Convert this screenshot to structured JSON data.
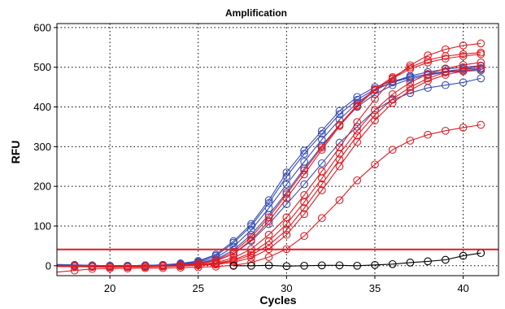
{
  "chart_data": {
    "type": "line",
    "title": "Amplification",
    "xlabel": "Cycles",
    "ylabel": "RFU",
    "xlim": [
      17,
      42
    ],
    "ylim": [
      -25,
      610
    ],
    "xticks": [
      20,
      25,
      30,
      35,
      40
    ],
    "yticks": [
      0,
      100,
      200,
      300,
      400,
      500,
      600
    ],
    "grid": true,
    "threshold": 41,
    "series": [
      {
        "color": "#3a4fb5",
        "values": [
          [
            18,
            2
          ],
          [
            19,
            1
          ],
          [
            20,
            0
          ],
          [
            21,
            0
          ],
          [
            22,
            1
          ],
          [
            23,
            2
          ],
          [
            24,
            6
          ],
          [
            25,
            12
          ],
          [
            26,
            28
          ],
          [
            27,
            62
          ],
          [
            28,
            105
          ],
          [
            29,
            165
          ],
          [
            30,
            235
          ],
          [
            31,
            290
          ],
          [
            32,
            340
          ],
          [
            33,
            390
          ],
          [
            34,
            425
          ],
          [
            35,
            450
          ],
          [
            36,
            465
          ],
          [
            37,
            475
          ],
          [
            38,
            482
          ],
          [
            39,
            487
          ],
          [
            40,
            490
          ],
          [
            41,
            492
          ]
        ]
      },
      {
        "color": "#3a4fb5",
        "values": [
          [
            18,
            2
          ],
          [
            19,
            1
          ],
          [
            20,
            0
          ],
          [
            21,
            0
          ],
          [
            22,
            1
          ],
          [
            23,
            2
          ],
          [
            24,
            5
          ],
          [
            25,
            11
          ],
          [
            26,
            25
          ],
          [
            27,
            58
          ],
          [
            28,
            100
          ],
          [
            29,
            158
          ],
          [
            30,
            225
          ],
          [
            31,
            282
          ],
          [
            32,
            332
          ],
          [
            33,
            382
          ],
          [
            34,
            418
          ],
          [
            35,
            445
          ],
          [
            36,
            462
          ],
          [
            37,
            474
          ],
          [
            38,
            483
          ],
          [
            39,
            490
          ],
          [
            40,
            495
          ],
          [
            41,
            498
          ]
        ]
      },
      {
        "color": "#3a4fb5",
        "values": [
          [
            18,
            1
          ],
          [
            19,
            0
          ],
          [
            20,
            -1
          ],
          [
            21,
            0
          ],
          [
            22,
            1
          ],
          [
            23,
            2
          ],
          [
            24,
            4
          ],
          [
            25,
            9
          ],
          [
            26,
            20
          ],
          [
            27,
            48
          ],
          [
            28,
            90
          ],
          [
            29,
            145
          ],
          [
            30,
            205
          ],
          [
            31,
            262
          ],
          [
            32,
            318
          ],
          [
            33,
            368
          ],
          [
            34,
            410
          ],
          [
            35,
            442
          ],
          [
            36,
            463
          ],
          [
            37,
            478
          ],
          [
            38,
            488
          ],
          [
            39,
            495
          ],
          [
            40,
            500
          ],
          [
            41,
            504
          ]
        ]
      },
      {
        "color": "#3a4fb5",
        "values": [
          [
            18,
            1
          ],
          [
            19,
            0
          ],
          [
            20,
            0
          ],
          [
            21,
            0
          ],
          [
            22,
            1
          ],
          [
            23,
            1
          ],
          [
            24,
            3
          ],
          [
            25,
            7
          ],
          [
            26,
            16
          ],
          [
            27,
            40
          ],
          [
            28,
            78
          ],
          [
            29,
            128
          ],
          [
            30,
            185
          ],
          [
            31,
            245
          ],
          [
            32,
            302
          ],
          [
            33,
            355
          ],
          [
            34,
            400
          ],
          [
            35,
            432
          ],
          [
            36,
            455
          ],
          [
            37,
            470
          ],
          [
            38,
            480
          ],
          [
            39,
            487
          ],
          [
            40,
            492
          ],
          [
            41,
            495
          ]
        ]
      },
      {
        "color": "#3a4fb5",
        "values": [
          [
            18,
            0
          ],
          [
            19,
            0
          ],
          [
            20,
            -1
          ],
          [
            21,
            -1
          ],
          [
            22,
            0
          ],
          [
            23,
            1
          ],
          [
            24,
            2
          ],
          [
            25,
            5
          ],
          [
            26,
            12
          ],
          [
            27,
            30
          ],
          [
            28,
            62
          ],
          [
            29,
            105
          ],
          [
            30,
            155
          ],
          [
            31,
            205
          ],
          [
            32,
            258
          ],
          [
            33,
            310
          ],
          [
            34,
            350
          ],
          [
            35,
            392
          ],
          [
            36,
            418
          ],
          [
            37,
            435
          ],
          [
            38,
            448
          ],
          [
            39,
            455
          ],
          [
            40,
            462
          ],
          [
            41,
            472
          ]
        ]
      },
      {
        "color": "#e01c24",
        "values": [
          [
            18,
            0
          ],
          [
            19,
            -1
          ],
          [
            20,
            -2
          ],
          [
            21,
            -2
          ],
          [
            22,
            -1
          ],
          [
            23,
            0
          ],
          [
            24,
            2
          ],
          [
            25,
            6
          ],
          [
            26,
            14
          ],
          [
            27,
            35
          ],
          [
            28,
            72
          ],
          [
            29,
            122
          ],
          [
            30,
            180
          ],
          [
            31,
            240
          ],
          [
            32,
            298
          ],
          [
            33,
            355
          ],
          [
            34,
            405
          ],
          [
            35,
            445
          ],
          [
            36,
            475
          ],
          [
            37,
            500
          ],
          [
            38,
            518
          ],
          [
            39,
            528
          ],
          [
            40,
            533
          ],
          [
            41,
            537
          ]
        ]
      },
      {
        "color": "#e01c24",
        "values": [
          [
            18,
            0
          ],
          [
            19,
            -1
          ],
          [
            20,
            -2
          ],
          [
            21,
            -2
          ],
          [
            22,
            -1
          ],
          [
            23,
            0
          ],
          [
            24,
            1
          ],
          [
            25,
            5
          ],
          [
            26,
            12
          ],
          [
            27,
            30
          ],
          [
            28,
            65
          ],
          [
            29,
            112
          ],
          [
            30,
            170
          ],
          [
            31,
            230
          ],
          [
            32,
            292
          ],
          [
            33,
            352
          ],
          [
            34,
            402
          ],
          [
            35,
            442
          ],
          [
            36,
            472
          ],
          [
            37,
            496
          ],
          [
            38,
            512
          ],
          [
            39,
            522
          ],
          [
            40,
            528
          ],
          [
            41,
            533
          ]
        ]
      },
      {
        "color": "#e01c24",
        "values": [
          [
            18,
            -1
          ],
          [
            19,
            -2
          ],
          [
            20,
            -3
          ],
          [
            21,
            -3
          ],
          [
            22,
            -2
          ],
          [
            23,
            -1
          ],
          [
            24,
            0
          ],
          [
            25,
            3
          ],
          [
            26,
            8
          ],
          [
            27,
            20
          ],
          [
            28,
            42
          ],
          [
            29,
            78
          ],
          [
            30,
            122
          ],
          [
            31,
            178
          ],
          [
            32,
            238
          ],
          [
            33,
            298
          ],
          [
            34,
            362
          ],
          [
            35,
            420
          ],
          [
            36,
            470
          ],
          [
            37,
            505
          ],
          [
            38,
            530
          ],
          [
            39,
            545
          ],
          [
            40,
            555
          ],
          [
            41,
            560
          ]
        ]
      },
      {
        "color": "#e01c24",
        "values": [
          [
            18,
            -1
          ],
          [
            19,
            -2
          ],
          [
            20,
            -3
          ],
          [
            21,
            -3
          ],
          [
            22,
            -2
          ],
          [
            23,
            -1
          ],
          [
            24,
            0
          ],
          [
            25,
            2
          ],
          [
            26,
            6
          ],
          [
            27,
            15
          ],
          [
            28,
            32
          ],
          [
            29,
            62
          ],
          [
            30,
            105
          ],
          [
            31,
            160
          ],
          [
            32,
            220
          ],
          [
            33,
            282
          ],
          [
            34,
            340
          ],
          [
            35,
            392
          ],
          [
            36,
            432
          ],
          [
            37,
            462
          ],
          [
            38,
            483
          ],
          [
            39,
            497
          ],
          [
            40,
            506
          ],
          [
            41,
            512
          ]
        ]
      },
      {
        "color": "#e01c24",
        "values": [
          [
            18,
            -2
          ],
          [
            19,
            -2
          ],
          [
            20,
            -3
          ],
          [
            21,
            -3
          ],
          [
            22,
            -2
          ],
          [
            23,
            -1
          ],
          [
            24,
            0
          ],
          [
            25,
            2
          ],
          [
            26,
            5
          ],
          [
            27,
            12
          ],
          [
            28,
            27
          ],
          [
            29,
            52
          ],
          [
            30,
            90
          ],
          [
            31,
            145
          ],
          [
            32,
            205
          ],
          [
            33,
            268
          ],
          [
            34,
            328
          ],
          [
            35,
            380
          ],
          [
            36,
            420
          ],
          [
            37,
            450
          ],
          [
            38,
            472
          ],
          [
            39,
            487
          ],
          [
            40,
            496
          ],
          [
            41,
            503
          ]
        ]
      },
      {
        "color": "#e01c24",
        "values": [
          [
            18,
            -2
          ],
          [
            19,
            -3
          ],
          [
            20,
            -4
          ],
          [
            21,
            -3
          ],
          [
            22,
            -3
          ],
          [
            23,
            -2
          ],
          [
            24,
            -1
          ],
          [
            25,
            1
          ],
          [
            26,
            3
          ],
          [
            27,
            9
          ],
          [
            28,
            20
          ],
          [
            29,
            42
          ],
          [
            30,
            78
          ],
          [
            31,
            130
          ],
          [
            32,
            190
          ],
          [
            33,
            250
          ],
          [
            34,
            312
          ],
          [
            35,
            366
          ],
          [
            36,
            410
          ],
          [
            37,
            442
          ],
          [
            38,
            466
          ],
          [
            39,
            481
          ],
          [
            40,
            490
          ],
          [
            41,
            496
          ]
        ]
      },
      {
        "color": "#e01c24",
        "values": [
          [
            18,
            -12
          ],
          [
            19,
            -8
          ],
          [
            20,
            -7
          ],
          [
            21,
            -7
          ],
          [
            22,
            -6
          ],
          [
            23,
            -6
          ],
          [
            24,
            -5
          ],
          [
            25,
            -4
          ],
          [
            26,
            -2
          ],
          [
            27,
            1
          ],
          [
            28,
            8
          ],
          [
            29,
            22
          ],
          [
            30,
            42
          ],
          [
            31,
            75
          ],
          [
            32,
            120
          ],
          [
            33,
            165
          ],
          [
            34,
            215
          ],
          [
            35,
            255
          ],
          [
            36,
            292
          ],
          [
            37,
            315
          ],
          [
            38,
            330
          ],
          [
            39,
            340
          ],
          [
            40,
            348
          ],
          [
            41,
            355
          ]
        ]
      },
      {
        "color": "#000000",
        "values": [
          [
            27,
            0
          ],
          [
            28,
            0
          ],
          [
            29,
            1
          ],
          [
            30,
            -1
          ],
          [
            31,
            0
          ],
          [
            32,
            1
          ],
          [
            33,
            1
          ],
          [
            34,
            0
          ],
          [
            35,
            2
          ],
          [
            36,
            4
          ],
          [
            37,
            8
          ],
          [
            38,
            11
          ],
          [
            39,
            15
          ],
          [
            40,
            25
          ],
          [
            41,
            32
          ]
        ]
      }
    ]
  }
}
